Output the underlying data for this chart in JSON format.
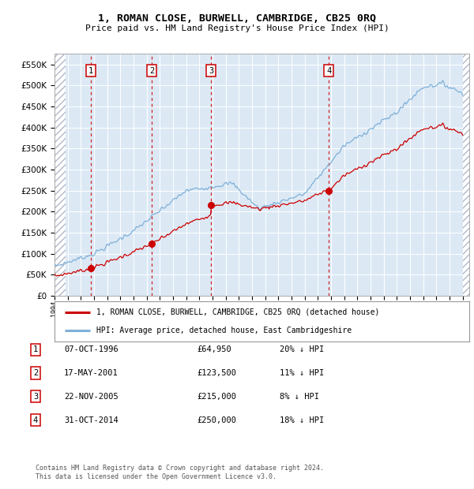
{
  "title": "1, ROMAN CLOSE, BURWELL, CAMBRIDGE, CB25 0RQ",
  "subtitle": "Price paid vs. HM Land Registry's House Price Index (HPI)",
  "ylim": [
    0,
    575000
  ],
  "yticks": [
    0,
    50000,
    100000,
    150000,
    200000,
    250000,
    300000,
    350000,
    400000,
    450000,
    500000,
    550000
  ],
  "background_color": "#ffffff",
  "plot_bg_color": "#dce9f5",
  "hatch_color": "#b0b8c8",
  "grid_color": "#ffffff",
  "sale_prices": [
    64950,
    123500,
    215000,
    250000
  ],
  "sale_labels": [
    "1",
    "2",
    "3",
    "4"
  ],
  "sale_year_floats": [
    1996.77,
    2001.38,
    2005.9,
    2014.83
  ],
  "sale_info": [
    {
      "label": "1",
      "date": "07-OCT-1996",
      "price": "£64,950",
      "pct": "20%",
      "dir": "↓"
    },
    {
      "label": "2",
      "date": "17-MAY-2001",
      "price": "£123,500",
      "pct": "11%",
      "dir": "↓"
    },
    {
      "label": "3",
      "date": "22-NOV-2005",
      "price": "£215,000",
      "pct": "8%",
      "dir": "↓"
    },
    {
      "label": "4",
      "date": "31-OCT-2014",
      "price": "£250,000",
      "pct": "18%",
      "dir": "↓"
    }
  ],
  "legend_house_label": "1, ROMAN CLOSE, BURWELL, CAMBRIDGE, CB25 0RQ (detached house)",
  "legend_hpi_label": "HPI: Average price, detached house, East Cambridgeshire",
  "house_line_color": "#cc0000",
  "hpi_line_color": "#7fb0d8",
  "sale_marker_color": "#cc0000",
  "vline_color": "#cc0000",
  "footnote": "Contains HM Land Registry data © Crown copyright and database right 2024.\nThis data is licensed under the Open Government Licence v3.0."
}
